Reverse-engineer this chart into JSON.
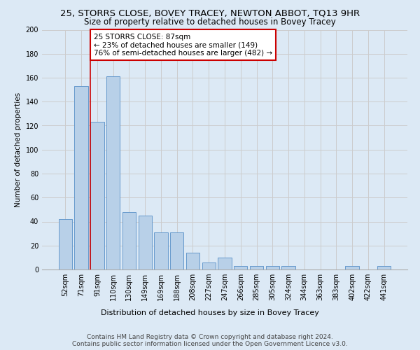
{
  "title1": "25, STORRS CLOSE, BOVEY TRACEY, NEWTON ABBOT, TQ13 9HR",
  "title2": "Size of property relative to detached houses in Bovey Tracey",
  "xlabel": "Distribution of detached houses by size in Bovey Tracey",
  "ylabel": "Number of detached properties",
  "categories": [
    "52sqm",
    "71sqm",
    "91sqm",
    "110sqm",
    "130sqm",
    "149sqm",
    "169sqm",
    "188sqm",
    "208sqm",
    "227sqm",
    "247sqm",
    "266sqm",
    "285sqm",
    "305sqm",
    "324sqm",
    "344sqm",
    "363sqm",
    "383sqm",
    "402sqm",
    "422sqm",
    "441sqm"
  ],
  "values": [
    42,
    153,
    123,
    161,
    48,
    45,
    31,
    31,
    14,
    6,
    10,
    3,
    3,
    3,
    3,
    0,
    0,
    0,
    3,
    0,
    3
  ],
  "bar_color": "#b8d0e8",
  "bar_edge_color": "#6699cc",
  "annotation_text": "25 STORRS CLOSE: 87sqm\n← 23% of detached houses are smaller (149)\n76% of semi-detached houses are larger (482) →",
  "annotation_box_color": "#ffffff",
  "annotation_box_edge": "#cc0000",
  "subject_line_color": "#cc0000",
  "ylim": [
    0,
    200
  ],
  "yticks": [
    0,
    20,
    40,
    60,
    80,
    100,
    120,
    140,
    160,
    180,
    200
  ],
  "grid_color": "#cccccc",
  "bg_color": "#dce9f5",
  "footer1": "Contains HM Land Registry data © Crown copyright and database right 2024.",
  "footer2": "Contains public sector information licensed under the Open Government Licence v3.0.",
  "title1_fontsize": 9.5,
  "title2_fontsize": 8.5,
  "xlabel_fontsize": 8,
  "ylabel_fontsize": 7.5,
  "tick_fontsize": 7,
  "annotation_fontsize": 7.5,
  "footer_fontsize": 6.5
}
